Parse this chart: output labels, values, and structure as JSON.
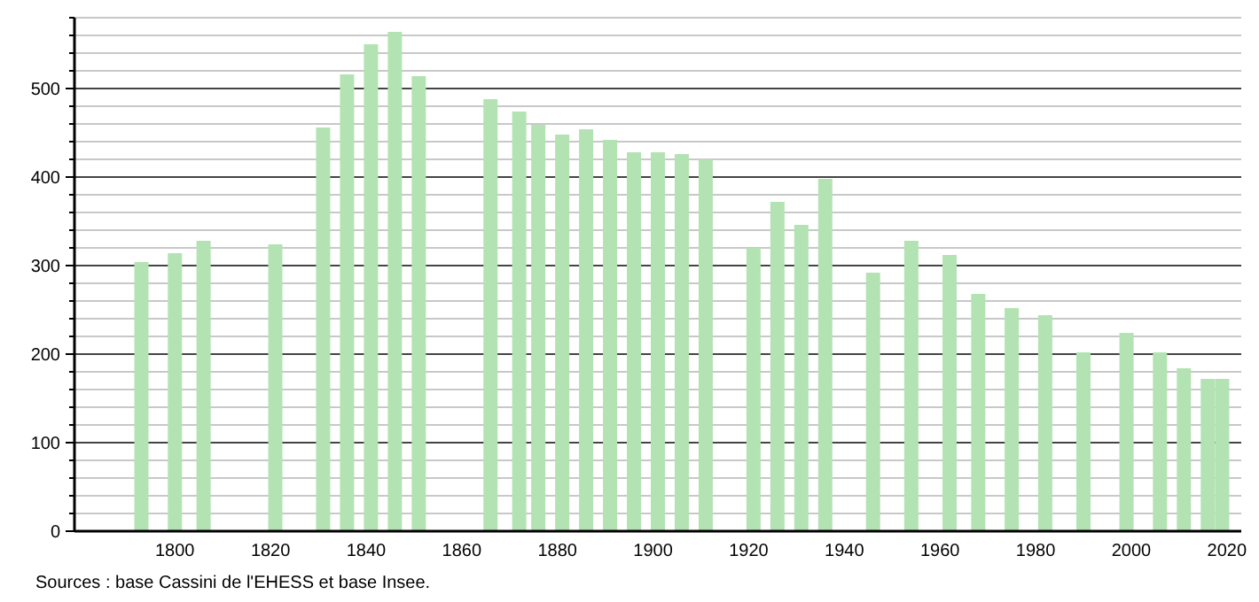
{
  "chart_data": {
    "type": "bar",
    "x": [
      1793,
      1800,
      1806,
      1821,
      1831,
      1836,
      1841,
      1846,
      1851,
      1866,
      1872,
      1876,
      1881,
      1886,
      1891,
      1896,
      1901,
      1906,
      1911,
      1921,
      1926,
      1931,
      1936,
      1946,
      1954,
      1962,
      1968,
      1975,
      1982,
      1990,
      1999,
      2006,
      2011,
      2016,
      2019
    ],
    "values": [
      304,
      314,
      328,
      324,
      456,
      516,
      550,
      564,
      514,
      488,
      474,
      459,
      448,
      454,
      442,
      428,
      428,
      426,
      420,
      320,
      372,
      346,
      398,
      292,
      328,
      312,
      268,
      252,
      244,
      202,
      224,
      202,
      184,
      172,
      172
    ],
    "color": "#b3e3b3",
    "xlim": [
      1779,
      2023
    ],
    "xticks": [
      1800,
      1820,
      1840,
      1860,
      1880,
      1900,
      1920,
      1940,
      1960,
      1980,
      2000,
      2020
    ],
    "ylim": [
      0,
      580
    ],
    "yticks": [
      0,
      {
        "value": 20,
        "label": null
      },
      {
        "value": 40,
        "label": null
      },
      {
        "value": 60,
        "label": null
      },
      {
        "value": 80,
        "label": null
      },
      100,
      {
        "value": 120,
        "label": null
      },
      {
        "value": 140,
        "label": null
      },
      {
        "value": 160,
        "label": null
      },
      {
        "value": 180,
        "label": null
      },
      200,
      {
        "value": 220,
        "label": null
      },
      {
        "value": 240,
        "label": null
      },
      {
        "value": 260,
        "label": null
      },
      {
        "value": 280,
        "label": null
      },
      300,
      {
        "value": 320,
        "label": null
      },
      {
        "value": 340,
        "label": null
      },
      {
        "value": 360,
        "label": null
      },
      {
        "value": 380,
        "label": null
      },
      400,
      {
        "value": 420,
        "label": null
      },
      {
        "value": 440,
        "label": null
      },
      {
        "value": 460,
        "label": null
      },
      {
        "value": 480,
        "label": null
      },
      500,
      {
        "value": 520,
        "label": null
      },
      {
        "value": 540,
        "label": null
      },
      {
        "value": 560,
        "label": null
      },
      {
        "value": 580,
        "label": null
      }
    ],
    "grid": "y",
    "annotations": [
      "Sources : base Cassini de l'EHESS et base Insee."
    ]
  }
}
